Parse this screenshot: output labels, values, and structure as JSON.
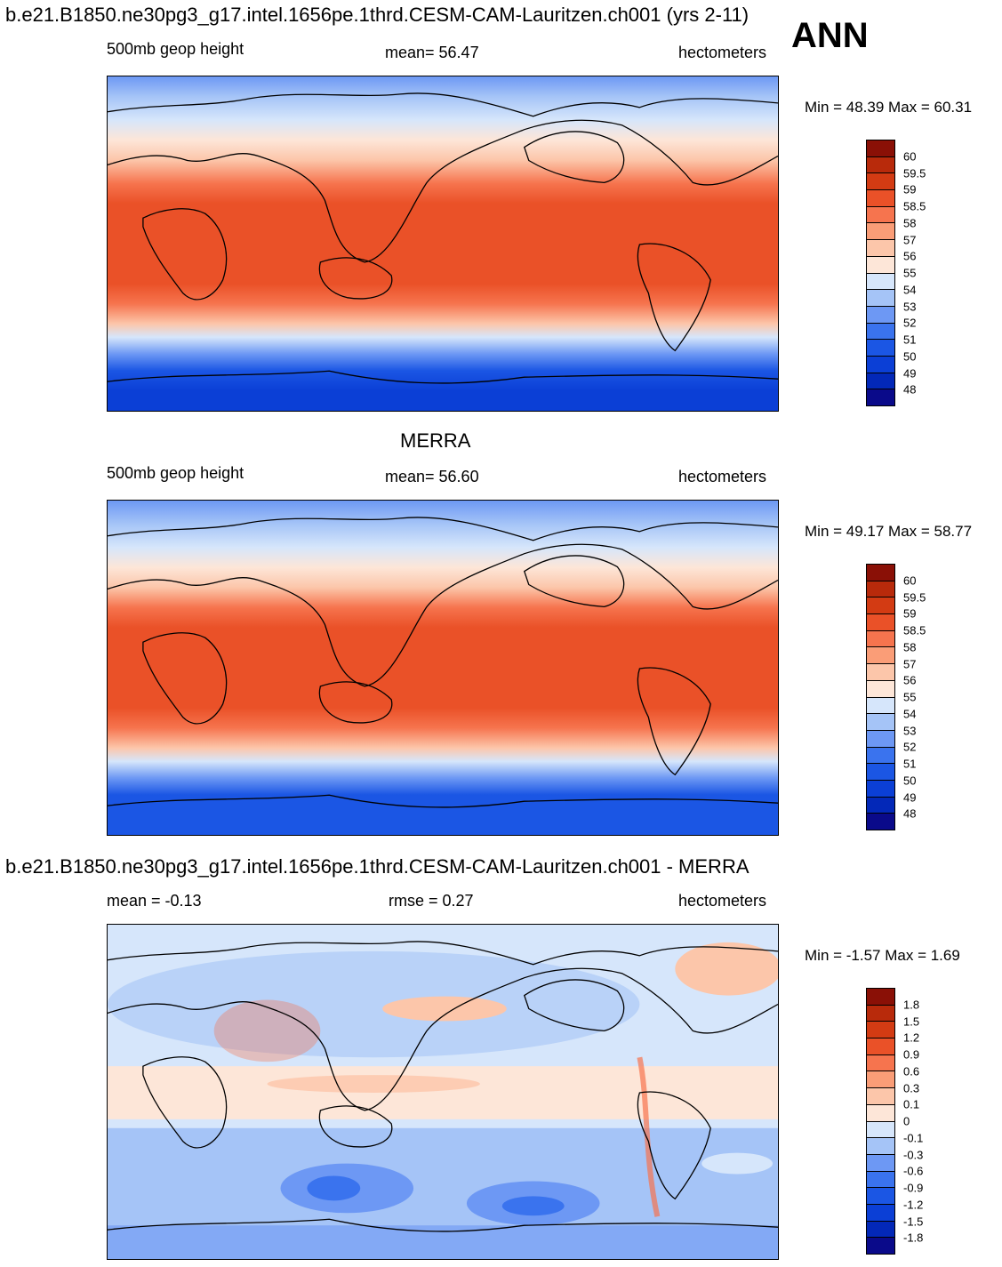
{
  "header": {
    "case_title": "b.e21.B1850.ne30pg3_g17.intel.1656pe.1thrd.CESM-CAM-Lauritzen.ch001 (yrs 2-11)",
    "season": "ANN"
  },
  "panels": [
    {
      "title": "",
      "left_label": "500mb geop height",
      "center_label": "mean=  56.47",
      "right_label": "hectometers",
      "minmax": "Min =  48.39 Max =  60.31",
      "colorbar": {
        "colors": [
          "#0a0a8a",
          "#0328b8",
          "#0b3fd6",
          "#1b56e4",
          "#3a73ee",
          "#6d98f4",
          "#a5c4f7",
          "#d6e6fb",
          "#fde6d8",
          "#fcc6aa",
          "#fa9d77",
          "#f6744e",
          "#ea5128",
          "#d33b13",
          "#b82a0b",
          "#8a1006"
        ],
        "labels": [
          "60",
          "59.5",
          "59",
          "58.5",
          "58",
          "57",
          "56",
          "55",
          "54",
          "53",
          "52",
          "51",
          "50",
          "49",
          "48"
        ]
      }
    },
    {
      "title": "MERRA",
      "left_label": "500mb geop height",
      "center_label": "mean=  56.60",
      "right_label": "hectometers",
      "minmax": "Min =  49.17 Max =  58.77",
      "colorbar": {
        "colors": [
          "#0a0a8a",
          "#0328b8",
          "#0b3fd6",
          "#1b56e4",
          "#3a73ee",
          "#6d98f4",
          "#a5c4f7",
          "#d6e6fb",
          "#fde6d8",
          "#fcc6aa",
          "#fa9d77",
          "#f6744e",
          "#ea5128",
          "#d33b13",
          "#b82a0b",
          "#8a1006"
        ],
        "labels": [
          "60",
          "59.5",
          "59",
          "58.5",
          "58",
          "57",
          "56",
          "55",
          "54",
          "53",
          "52",
          "51",
          "50",
          "49",
          "48"
        ]
      }
    },
    {
      "title": "b.e21.B1850.ne30pg3_g17.intel.1656pe.1thrd.CESM-CAM-Lauritzen.ch001 - MERRA",
      "left_label": "mean =  -0.13",
      "center_label": "rmse =   0.27",
      "right_label": "hectometers",
      "minmax": "Min =  -1.57 Max =   1.69",
      "colorbar": {
        "colors": [
          "#0a0a8a",
          "#0328b8",
          "#0b3fd6",
          "#1b56e4",
          "#3a73ee",
          "#6d98f4",
          "#a5c4f7",
          "#d6e6fb",
          "#fde6d8",
          "#fcc6aa",
          "#fa9d77",
          "#f6744e",
          "#ea5128",
          "#d33b13",
          "#b82a0b",
          "#8a1006"
        ],
        "labels": [
          "1.8",
          "1.5",
          "1.2",
          "0.9",
          "0.6",
          "0.3",
          "0.1",
          "0",
          "-0.1",
          "-0.3",
          "-0.6",
          "-0.9",
          "-1.2",
          "-1.5",
          "-1.8"
        ]
      }
    }
  ]
}
